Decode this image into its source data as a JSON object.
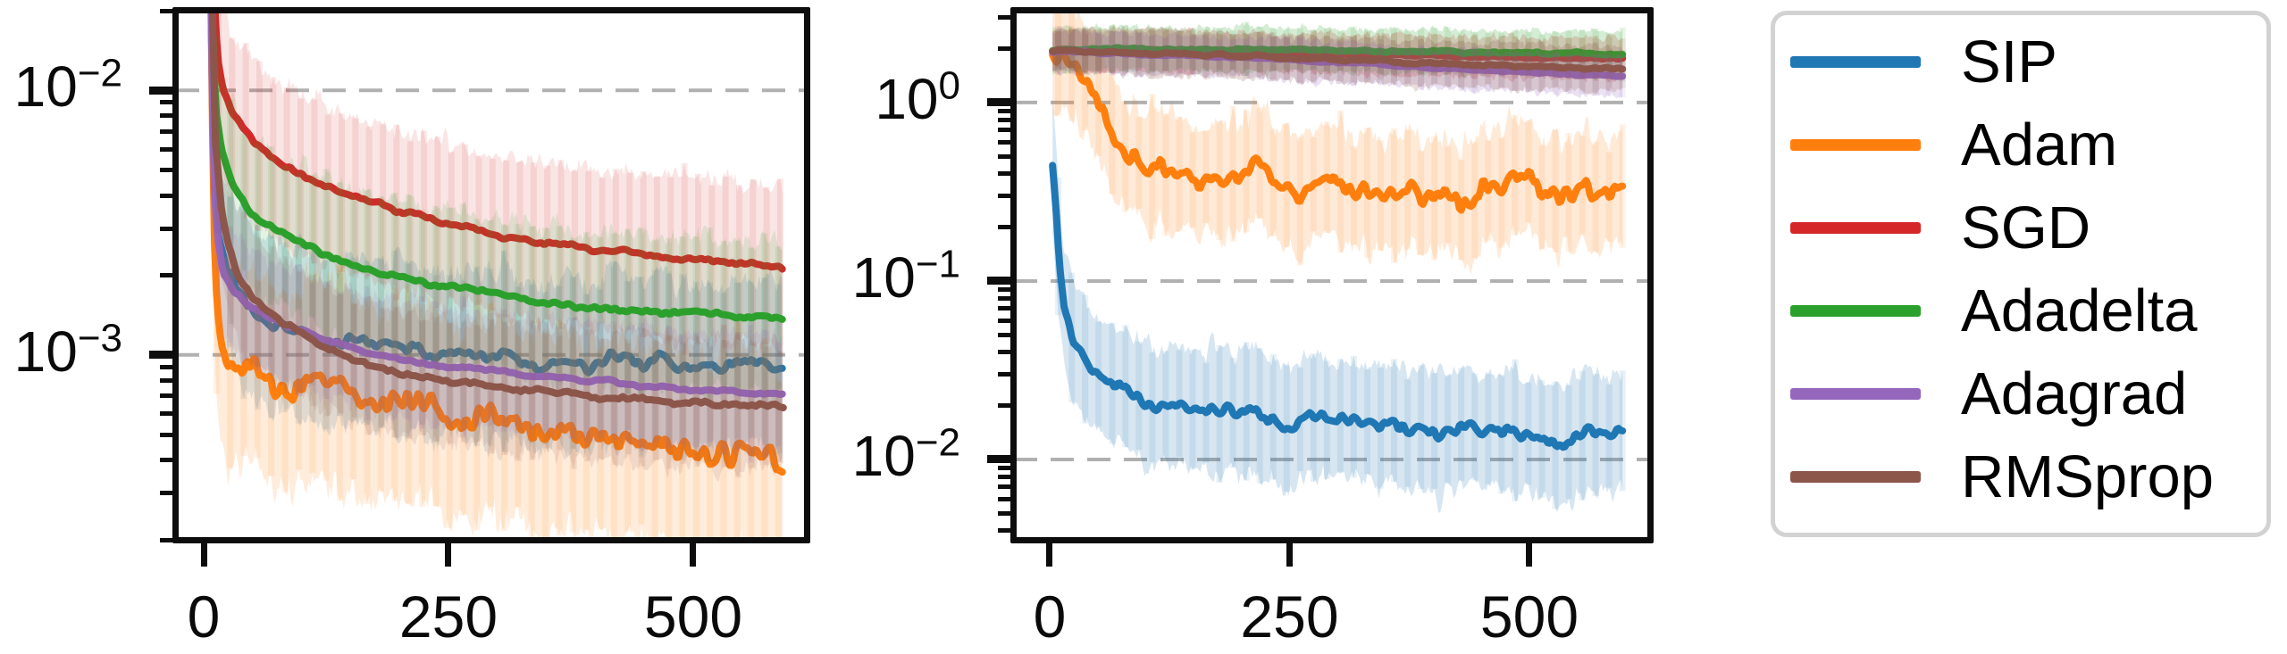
{
  "figure": {
    "description": "Two log-scale optimizer convergence plots with shaded confidence bands and a shared legend",
    "background": "#ffffff",
    "grid_color": "#b0b0b0",
    "spine_color": "#0d0d0d"
  },
  "legend": {
    "items": [
      {
        "label": "SIP",
        "color": "#1f77b4"
      },
      {
        "label": "Adam",
        "color": "#ff7f0e"
      },
      {
        "label": "SGD",
        "color": "#d62728"
      },
      {
        "label": "Adadelta",
        "color": "#2ca02c"
      },
      {
        "label": "Adagrad",
        "color": "#9467bd"
      },
      {
        "label": "RMSprop",
        "color": "#8c564b"
      }
    ]
  },
  "chart_data": [
    {
      "id": "left",
      "type": "line",
      "title": "",
      "xlabel": "",
      "ylabel": "",
      "ylog": true,
      "xlim": [
        -28.3,
        615.9
      ],
      "ylim": [
        0.0002,
        0.02
      ],
      "x_end": 592,
      "xticks": [
        {
          "label": "0",
          "x": 0
        },
        {
          "label": "250",
          "x": 250
        },
        {
          "label": "500",
          "x": 500
        }
      ],
      "yticks": [
        {
          "base": "10",
          "exp": "−2",
          "v": 0.01
        },
        {
          "base": "10",
          "exp": "−3",
          "v": 0.001
        }
      ],
      "grid": true,
      "legend_position": "outside-right",
      "series": [
        {
          "name": "SIP",
          "color": "#1f77b4",
          "seed": 11,
          "smooth": 0.03,
          "fine": 0.022,
          "band": 0.26,
          "bandNoise": 0.07,
          "band_alpha": 0.16,
          "anchors": [
            [
              7,
              0.03
            ],
            [
              10,
              0.005
            ],
            [
              15,
              0.003
            ],
            [
              25,
              0.0021
            ],
            [
              40,
              0.00165
            ],
            [
              60,
              0.0014
            ],
            [
              90,
              0.00125
            ],
            [
              120,
              0.00118
            ],
            [
              160,
              0.00112
            ],
            [
              200,
              0.00105
            ],
            [
              250,
              0.001
            ],
            [
              300,
              0.00098
            ],
            [
              350,
              0.00096
            ],
            [
              400,
              0.00092
            ],
            [
              450,
              0.00096
            ],
            [
              500,
              0.0009
            ],
            [
              550,
              0.00088
            ],
            [
              592,
              0.00092
            ]
          ]
        },
        {
          "name": "Adam",
          "color": "#ff7f0e",
          "seed": 22,
          "smooth": 0.045,
          "fine": 0.045,
          "band": 0.3,
          "bandNoise": 0.1,
          "band_alpha": 0.15,
          "anchors": [
            [
              7,
              0.03
            ],
            [
              10,
              0.0035
            ],
            [
              14,
              0.0016
            ],
            [
              18,
              0.00115
            ],
            [
              25,
              0.00098
            ],
            [
              40,
              0.0009
            ],
            [
              60,
              0.00085
            ],
            [
              90,
              0.0008
            ],
            [
              120,
              0.00075
            ],
            [
              160,
              0.0007
            ],
            [
              200,
              0.00065
            ],
            [
              250,
              0.0006
            ],
            [
              300,
              0.00056
            ],
            [
              350,
              0.00053
            ],
            [
              400,
              0.0005
            ],
            [
              450,
              0.00047
            ],
            [
              500,
              0.00045
            ],
            [
              550,
              0.00043
            ],
            [
              592,
              0.00042
            ]
          ]
        },
        {
          "name": "SGD",
          "color": "#d62728",
          "seed": 33,
          "smooth": 0.008,
          "fine": 0.007,
          "band": 0.26,
          "bandNoise": 0.06,
          "band_alpha": 0.12,
          "anchors": [
            [
              9,
              0.03
            ],
            [
              14,
              0.0135
            ],
            [
              20,
              0.0102
            ],
            [
              30,
              0.0082
            ],
            [
              50,
              0.0064
            ],
            [
              80,
              0.0052
            ],
            [
              120,
              0.0044
            ],
            [
              160,
              0.0039
            ],
            [
              200,
              0.0035
            ],
            [
              250,
              0.0031
            ],
            [
              300,
              0.00285
            ],
            [
              350,
              0.00265
            ],
            [
              400,
              0.0025
            ],
            [
              450,
              0.00238
            ],
            [
              500,
              0.00228
            ],
            [
              550,
              0.0022
            ],
            [
              592,
              0.00213
            ]
          ]
        },
        {
          "name": "Adadelta",
          "color": "#2ca02c",
          "seed": 44,
          "smooth": 0.009,
          "fine": 0.008,
          "band": 0.24,
          "bandNoise": 0.06,
          "band_alpha": 0.12,
          "anchors": [
            [
              7,
              0.03
            ],
            [
              12,
              0.0085
            ],
            [
              18,
              0.0058
            ],
            [
              30,
              0.0043
            ],
            [
              50,
              0.0034
            ],
            [
              80,
              0.00285
            ],
            [
              120,
              0.0024
            ],
            [
              160,
              0.00215
            ],
            [
              200,
              0.00197
            ],
            [
              250,
              0.00182
            ],
            [
              300,
              0.0017
            ],
            [
              350,
              0.00157
            ],
            [
              400,
              0.0015
            ],
            [
              450,
              0.00146
            ],
            [
              500,
              0.00143
            ],
            [
              550,
              0.00141
            ],
            [
              592,
              0.0014
            ]
          ]
        },
        {
          "name": "Adagrad",
          "color": "#9467bd",
          "seed": 55,
          "smooth": 0.007,
          "fine": 0.005,
          "band": 0.18,
          "bandNoise": 0.05,
          "band_alpha": 0.12,
          "anchors": [
            [
              7,
              0.03
            ],
            [
              10,
              0.0048
            ],
            [
              14,
              0.0028
            ],
            [
              20,
              0.00205
            ],
            [
              30,
              0.00175
            ],
            [
              50,
              0.00152
            ],
            [
              80,
              0.00133
            ],
            [
              120,
              0.00115
            ],
            [
              160,
              0.00104
            ],
            [
              200,
              0.00097
            ],
            [
              250,
              0.0009
            ],
            [
              300,
              0.00086
            ],
            [
              350,
              0.00083
            ],
            [
              400,
              0.0008
            ],
            [
              450,
              0.00077
            ],
            [
              500,
              0.00074
            ],
            [
              550,
              0.00072
            ],
            [
              592,
              0.0007
            ]
          ]
        },
        {
          "name": "RMSprop",
          "color": "#8c564b",
          "seed": 66,
          "smooth": 0.008,
          "fine": 0.006,
          "band": 0.2,
          "bandNoise": 0.05,
          "band_alpha": 0.12,
          "anchors": [
            [
              8,
              0.03
            ],
            [
              12,
              0.0062
            ],
            [
              18,
              0.0036
            ],
            [
              25,
              0.0026
            ],
            [
              35,
              0.002
            ],
            [
              50,
              0.00163
            ],
            [
              80,
              0.00132
            ],
            [
              120,
              0.00107
            ],
            [
              160,
              0.00094
            ],
            [
              200,
              0.00086
            ],
            [
              250,
              0.0008
            ],
            [
              300,
              0.00076
            ],
            [
              350,
              0.00073
            ],
            [
              400,
              0.0007
            ],
            [
              450,
              0.00068
            ],
            [
              500,
              0.00066
            ],
            [
              550,
              0.00065
            ],
            [
              592,
              0.00064
            ]
          ]
        }
      ]
    },
    {
      "id": "right",
      "type": "line",
      "title": "",
      "xlabel": "",
      "ylabel": "",
      "ylog": true,
      "xlim": [
        -37.2,
        625.7
      ],
      "ylim": [
        0.003548,
        3.27
      ],
      "x_end": 598,
      "xticks": [
        {
          "label": "0",
          "x": 0
        },
        {
          "label": "250",
          "x": 250
        },
        {
          "label": "500",
          "x": 500
        }
      ],
      "yticks": [
        {
          "base": "10",
          "exp": "0",
          "v": 1
        },
        {
          "base": "10",
          "exp": "−1",
          "v": 0.1
        },
        {
          "base": "10",
          "exp": "−2",
          "v": 0.01
        }
      ],
      "grid": true,
      "legend_position": "outside-right",
      "series": [
        {
          "name": "SIP",
          "color": "#1f77b4",
          "seed": 77,
          "smooth": 0.045,
          "fine": 0.035,
          "band": 0.27,
          "bandNoise": 0.08,
          "band_alpha": 0.18,
          "anchors": [
            [
              3,
              0.45
            ],
            [
              6,
              0.28
            ],
            [
              10,
              0.12
            ],
            [
              15,
              0.07
            ],
            [
              20,
              0.055
            ],
            [
              30,
              0.042
            ],
            [
              45,
              0.033
            ],
            [
              60,
              0.028
            ],
            [
              80,
              0.024
            ],
            [
              100,
              0.021
            ],
            [
              130,
              0.0195
            ],
            [
              160,
              0.018
            ],
            [
              200,
              0.018
            ],
            [
              240,
              0.0165
            ],
            [
              280,
              0.016
            ],
            [
              320,
              0.016
            ],
            [
              360,
              0.0155
            ],
            [
              400,
              0.0145
            ],
            [
              440,
              0.015
            ],
            [
              480,
              0.0135
            ],
            [
              520,
              0.0135
            ],
            [
              560,
              0.013
            ],
            [
              598,
              0.0138
            ]
          ]
        },
        {
          "name": "Adam",
          "color": "#ff7f0e",
          "seed": 88,
          "smooth": 0.06,
          "fine": 0.06,
          "band": 0.24,
          "bandNoise": 0.09,
          "band_alpha": 0.16,
          "anchors": [
            [
              3,
              1.92
            ],
            [
              20,
              1.8
            ],
            [
              35,
              1.45
            ],
            [
              50,
              1.0
            ],
            [
              62,
              0.78
            ],
            [
              75,
              0.63
            ],
            [
              90,
              0.54
            ],
            [
              110,
              0.46
            ],
            [
              130,
              0.4
            ],
            [
              150,
              0.36
            ],
            [
              170,
              0.38
            ],
            [
              190,
              0.33
            ],
            [
              210,
              0.42
            ],
            [
              230,
              0.33
            ],
            [
              250,
              0.35
            ],
            [
              270,
              0.3
            ],
            [
              290,
              0.44
            ],
            [
              310,
              0.32
            ],
            [
              330,
              0.33
            ],
            [
              350,
              0.3
            ],
            [
              370,
              0.36
            ],
            [
              390,
              0.3
            ],
            [
              410,
              0.33
            ],
            [
              430,
              0.28
            ],
            [
              450,
              0.34
            ],
            [
              470,
              0.3
            ],
            [
              490,
              0.42
            ],
            [
              510,
              0.3
            ],
            [
              530,
              0.28
            ],
            [
              550,
              0.33
            ],
            [
              570,
              0.3
            ],
            [
              598,
              0.35
            ]
          ]
        },
        {
          "name": "SGD",
          "color": "#d62728",
          "seed": 99,
          "smooth": 0.006,
          "fine": 0.005,
          "band": 0.09,
          "bandNoise": 0.03,
          "band_alpha": 0.2,
          "anchors": [
            [
              3,
              1.97
            ],
            [
              100,
              1.95
            ],
            [
              200,
              1.92
            ],
            [
              300,
              1.88
            ],
            [
              400,
              1.83
            ],
            [
              500,
              1.78
            ],
            [
              598,
              1.74
            ]
          ]
        },
        {
          "name": "Adadelta",
          "color": "#2ca02c",
          "seed": 111,
          "smooth": 0.006,
          "fine": 0.005,
          "band": 0.1,
          "bandNoise": 0.03,
          "band_alpha": 0.2,
          "anchors": [
            [
              3,
              1.98
            ],
            [
              100,
              2.0
            ],
            [
              200,
              1.98
            ],
            [
              300,
              1.96
            ],
            [
              400,
              1.93
            ],
            [
              500,
              1.9
            ],
            [
              598,
              1.87
            ]
          ]
        },
        {
          "name": "Adagrad",
          "color": "#9467bd",
          "seed": 122,
          "smooth": 0.006,
          "fine": 0.004,
          "band": 0.09,
          "bandNoise": 0.03,
          "band_alpha": 0.2,
          "anchors": [
            [
              3,
              1.93
            ],
            [
              100,
              1.87
            ],
            [
              200,
              1.78
            ],
            [
              300,
              1.68
            ],
            [
              400,
              1.57
            ],
            [
              500,
              1.48
            ],
            [
              598,
              1.41
            ]
          ]
        },
        {
          "name": "RMSprop",
          "color": "#8c564b",
          "seed": 133,
          "smooth": 0.007,
          "fine": 0.005,
          "band": 0.1,
          "bandNoise": 0.03,
          "band_alpha": 0.2,
          "anchors": [
            [
              3,
              1.95
            ],
            [
              100,
              1.9
            ],
            [
              200,
              1.83
            ],
            [
              300,
              1.75
            ],
            [
              400,
              1.66
            ],
            [
              500,
              1.59
            ],
            [
              598,
              1.53
            ]
          ]
        }
      ]
    }
  ]
}
